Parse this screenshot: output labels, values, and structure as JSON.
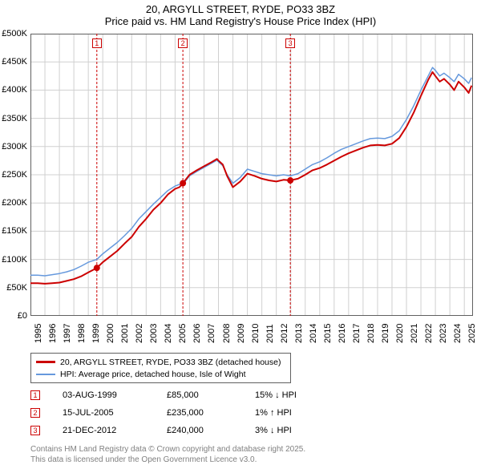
{
  "title": {
    "line1": "20, ARGYLL STREET, RYDE, PO33 3BZ",
    "line2": "Price paid vs. HM Land Registry's House Price Index (HPI)"
  },
  "chart": {
    "type": "line",
    "background_color": "#ffffff",
    "grid_color": "#d0d0d0",
    "border_color": "#606060",
    "x": {
      "min": 1995.0,
      "max": 2025.6,
      "ticks": [
        1995,
        1996,
        1997,
        1998,
        1999,
        2000,
        2001,
        2002,
        2003,
        2004,
        2005,
        2006,
        2007,
        2008,
        2009,
        2010,
        2011,
        2012,
        2013,
        2014,
        2015,
        2016,
        2017,
        2018,
        2019,
        2020,
        2021,
        2022,
        2023,
        2024,
        2025
      ],
      "labels": [
        "1995",
        "1996",
        "1997",
        "1998",
        "1999",
        "2000",
        "2001",
        "2002",
        "2003",
        "2004",
        "2005",
        "2006",
        "2007",
        "2008",
        "2009",
        "2010",
        "2011",
        "2012",
        "2013",
        "2014",
        "2015",
        "2016",
        "2017",
        "2018",
        "2019",
        "2020",
        "2021",
        "2022",
        "2023",
        "2024",
        "2025"
      ]
    },
    "y": {
      "min": 0,
      "max": 500000,
      "ticks": [
        0,
        50000,
        100000,
        150000,
        200000,
        250000,
        300000,
        350000,
        400000,
        450000,
        500000
      ],
      "labels": [
        "£0",
        "£50K",
        "£100K",
        "£150K",
        "£200K",
        "£250K",
        "£300K",
        "£350K",
        "£400K",
        "£450K",
        "£500K"
      ],
      "label_fontsize": 11
    },
    "series": [
      {
        "name": "20, ARGYLL STREET, RYDE, PO33 3BZ (detached house)",
        "color": "#cc0000",
        "width": 2,
        "points": [
          [
            1995.0,
            58000
          ],
          [
            1995.5,
            58000
          ],
          [
            1996.0,
            57000
          ],
          [
            1996.5,
            58000
          ],
          [
            1997.0,
            59000
          ],
          [
            1997.5,
            62000
          ],
          [
            1998.0,
            65000
          ],
          [
            1998.5,
            70000
          ],
          [
            1999.0,
            77000
          ],
          [
            1999.59,
            85000
          ],
          [
            2000.0,
            95000
          ],
          [
            2000.5,
            105000
          ],
          [
            2001.0,
            115000
          ],
          [
            2001.5,
            128000
          ],
          [
            2002.0,
            140000
          ],
          [
            2002.5,
            158000
          ],
          [
            2003.0,
            172000
          ],
          [
            2003.5,
            188000
          ],
          [
            2004.0,
            200000
          ],
          [
            2004.5,
            215000
          ],
          [
            2005.0,
            225000
          ],
          [
            2005.3,
            228000
          ],
          [
            2005.54,
            235000
          ],
          [
            2006.0,
            250000
          ],
          [
            2006.5,
            258000
          ],
          [
            2007.0,
            265000
          ],
          [
            2007.5,
            272000
          ],
          [
            2007.9,
            278000
          ],
          [
            2008.0,
            275000
          ],
          [
            2008.3,
            268000
          ],
          [
            2008.6,
            248000
          ],
          [
            2009.0,
            228000
          ],
          [
            2009.5,
            238000
          ],
          [
            2010.0,
            252000
          ],
          [
            2010.5,
            248000
          ],
          [
            2011.0,
            243000
          ],
          [
            2011.5,
            240000
          ],
          [
            2012.0,
            238000
          ],
          [
            2012.5,
            241000
          ],
          [
            2012.97,
            240000
          ],
          [
            2013.5,
            243000
          ],
          [
            2014.0,
            250000
          ],
          [
            2014.5,
            258000
          ],
          [
            2015.0,
            262000
          ],
          [
            2015.5,
            268000
          ],
          [
            2016.0,
            275000
          ],
          [
            2016.5,
            282000
          ],
          [
            2017.0,
            288000
          ],
          [
            2017.5,
            293000
          ],
          [
            2018.0,
            298000
          ],
          [
            2018.5,
            302000
          ],
          [
            2019.0,
            303000
          ],
          [
            2019.5,
            302000
          ],
          [
            2020.0,
            305000
          ],
          [
            2020.5,
            315000
          ],
          [
            2021.0,
            335000
          ],
          [
            2021.5,
            360000
          ],
          [
            2022.0,
            390000
          ],
          [
            2022.5,
            418000
          ],
          [
            2022.8,
            432000
          ],
          [
            2023.0,
            425000
          ],
          [
            2023.3,
            415000
          ],
          [
            2023.6,
            420000
          ],
          [
            2024.0,
            410000
          ],
          [
            2024.3,
            400000
          ],
          [
            2024.6,
            415000
          ],
          [
            2025.0,
            405000
          ],
          [
            2025.3,
            395000
          ],
          [
            2025.5,
            408000
          ]
        ]
      },
      {
        "name": "HPI: Average price, detached house, Isle of Wight",
        "color": "#6699dd",
        "width": 1.5,
        "points": [
          [
            1995.0,
            72000
          ],
          [
            1995.5,
            72000
          ],
          [
            1996.0,
            71000
          ],
          [
            1996.5,
            73000
          ],
          [
            1997.0,
            75000
          ],
          [
            1997.5,
            78000
          ],
          [
            1998.0,
            82000
          ],
          [
            1998.5,
            88000
          ],
          [
            1999.0,
            95000
          ],
          [
            1999.59,
            100000
          ],
          [
            2000.0,
            110000
          ],
          [
            2000.5,
            120000
          ],
          [
            2001.0,
            130000
          ],
          [
            2001.5,
            142000
          ],
          [
            2002.0,
            155000
          ],
          [
            2002.5,
            172000
          ],
          [
            2003.0,
            185000
          ],
          [
            2003.5,
            198000
          ],
          [
            2004.0,
            210000
          ],
          [
            2004.5,
            222000
          ],
          [
            2005.0,
            230000
          ],
          [
            2005.3,
            233000
          ],
          [
            2005.54,
            233000
          ],
          [
            2006.0,
            248000
          ],
          [
            2006.5,
            256000
          ],
          [
            2007.0,
            263000
          ],
          [
            2007.5,
            270000
          ],
          [
            2007.9,
            276000
          ],
          [
            2008.0,
            273000
          ],
          [
            2008.3,
            266000
          ],
          [
            2008.6,
            250000
          ],
          [
            2009.0,
            235000
          ],
          [
            2009.5,
            245000
          ],
          [
            2010.0,
            260000
          ],
          [
            2010.5,
            256000
          ],
          [
            2011.0,
            252000
          ],
          [
            2011.5,
            250000
          ],
          [
            2012.0,
            248000
          ],
          [
            2012.5,
            250000
          ],
          [
            2012.97,
            248000
          ],
          [
            2013.5,
            252000
          ],
          [
            2014.0,
            260000
          ],
          [
            2014.5,
            268000
          ],
          [
            2015.0,
            273000
          ],
          [
            2015.5,
            280000
          ],
          [
            2016.0,
            288000
          ],
          [
            2016.5,
            295000
          ],
          [
            2017.0,
            300000
          ],
          [
            2017.5,
            305000
          ],
          [
            2018.0,
            310000
          ],
          [
            2018.5,
            314000
          ],
          [
            2019.0,
            315000
          ],
          [
            2019.5,
            314000
          ],
          [
            2020.0,
            318000
          ],
          [
            2020.5,
            328000
          ],
          [
            2021.0,
            348000
          ],
          [
            2021.5,
            372000
          ],
          [
            2022.0,
            400000
          ],
          [
            2022.5,
            425000
          ],
          [
            2022.8,
            440000
          ],
          [
            2023.0,
            435000
          ],
          [
            2023.3,
            425000
          ],
          [
            2023.6,
            430000
          ],
          [
            2024.0,
            422000
          ],
          [
            2024.3,
            415000
          ],
          [
            2024.6,
            428000
          ],
          [
            2025.0,
            420000
          ],
          [
            2025.3,
            412000
          ],
          [
            2025.5,
            422000
          ]
        ]
      }
    ],
    "sale_markers": [
      {
        "n": "1",
        "x": 1999.59,
        "y": 85000,
        "color": "#cc0000"
      },
      {
        "n": "2",
        "x": 2005.54,
        "y": 235000,
        "color": "#cc0000"
      },
      {
        "n": "3",
        "x": 2012.97,
        "y": 240000,
        "color": "#cc0000"
      }
    ],
    "marker_line_dash": "3,2",
    "marker_dot_radius": 4
  },
  "legend": {
    "items": [
      {
        "label": "20, ARGYLL STREET, RYDE, PO33 3BZ (detached house)",
        "color": "#cc0000"
      },
      {
        "label": "HPI: Average price, detached house, Isle of Wight",
        "color": "#6699dd"
      }
    ]
  },
  "sales": [
    {
      "n": "1",
      "date": "03-AUG-1999",
      "price": "£85,000",
      "diff": "15% ↓ HPI",
      "color": "#cc0000"
    },
    {
      "n": "2",
      "date": "15-JUL-2005",
      "price": "£235,000",
      "diff": "1% ↑ HPI",
      "color": "#cc0000"
    },
    {
      "n": "3",
      "date": "21-DEC-2012",
      "price": "£240,000",
      "diff": "3% ↓ HPI",
      "color": "#cc0000"
    }
  ],
  "footer": {
    "line1": "Contains HM Land Registry data © Crown copyright and database right 2025.",
    "line2": "This data is licensed under the Open Government Licence v3.0."
  }
}
